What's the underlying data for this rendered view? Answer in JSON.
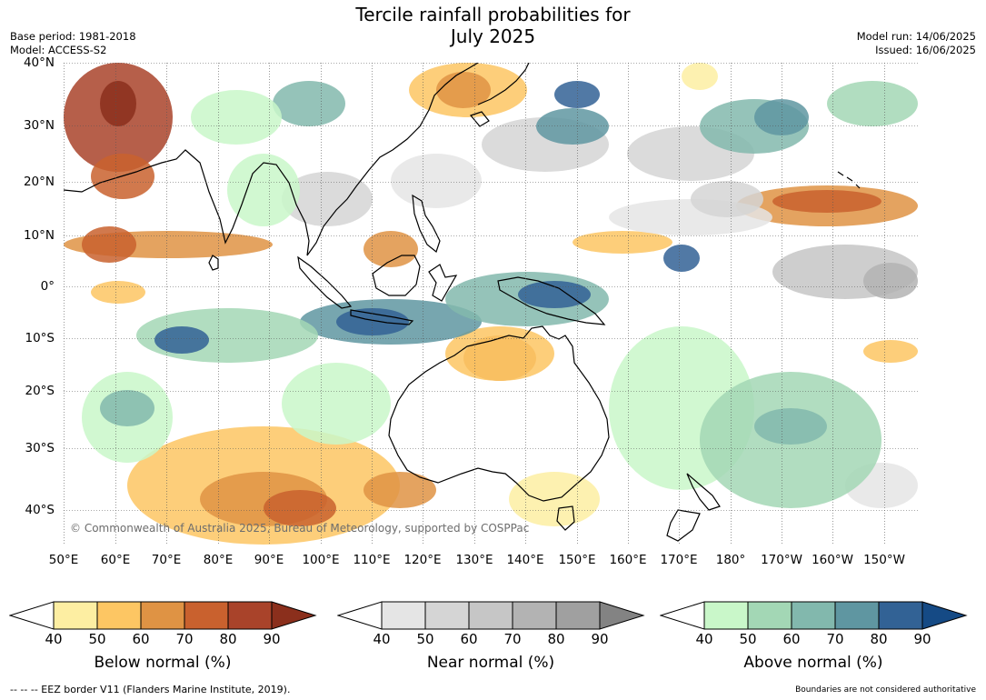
{
  "title_line1": "Tercile rainfall probabilities for",
  "title_line2": "July 2025",
  "meta_left": {
    "base_period": "Base period: 1981-2018",
    "model": "Model: ACCESS-S2"
  },
  "meta_right": {
    "model_run": "Model run: 14/06/2025",
    "issued": "Issued: 16/06/2025"
  },
  "lat_labels": [
    "40°N",
    "30°N",
    "20°N",
    "10°N",
    "0°",
    "10°S",
    "20°S",
    "30°S",
    "40°S"
  ],
  "lon_labels": [
    "50°E",
    "60°E",
    "70°E",
    "80°E",
    "90°E",
    "100°E",
    "110°E",
    "120°E",
    "130°E",
    "140°E",
    "150°E",
    "160°E",
    "170°E",
    "180°",
    "170°W",
    "160°W",
    "150°W"
  ],
  "copyright": "© Commonwealth of Australia 2025, Bureau of Meteorology, supported by COSPPac",
  "colorbars": [
    {
      "label": "Below normal (%)",
      "ticks": [
        "40",
        "50",
        "60",
        "70",
        "80",
        "90"
      ],
      "colors": [
        "#fdeea2",
        "#fdc663",
        "#df9344",
        "#c9612e",
        "#a9432a",
        "#8b2f1c"
      ]
    },
    {
      "label": "Near normal (%)",
      "ticks": [
        "40",
        "50",
        "60",
        "70",
        "80",
        "90"
      ],
      "colors": [
        "#e5e5e5",
        "#d5d5d5",
        "#c6c6c6",
        "#b3b3b3",
        "#a0a0a0",
        "#838383"
      ]
    },
    {
      "label": "Above normal (%)",
      "ticks": [
        "40",
        "50",
        "60",
        "70",
        "80",
        "90"
      ],
      "colors": [
        "#c9f7c9",
        "#a3d7b5",
        "#82b8ad",
        "#5f96a1",
        "#326295",
        "#154a85"
      ]
    }
  ],
  "eez_note": "--  --  -- EEZ border V11 (Flanders Marine Institute, 2019).",
  "bounds_note": "Boundaries are not considered authoritative"
}
